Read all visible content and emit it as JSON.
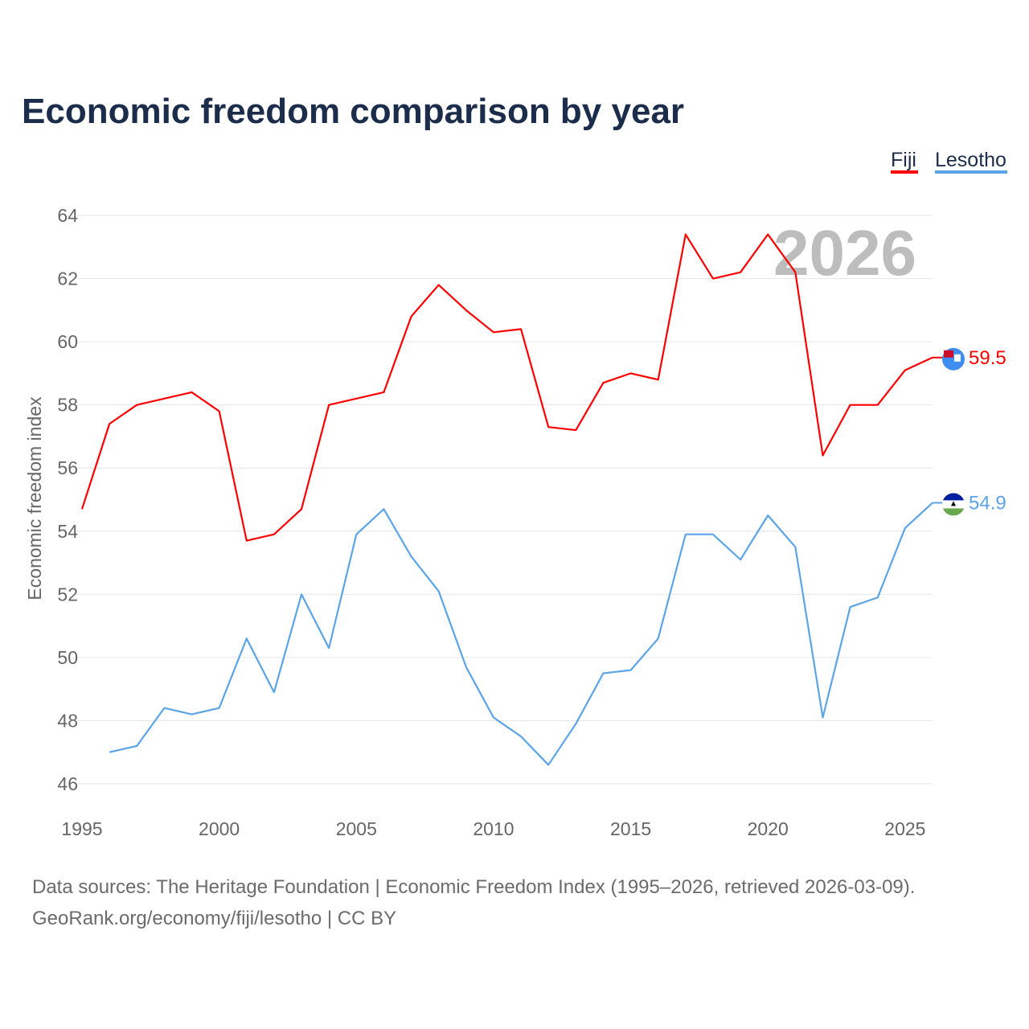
{
  "chart_data": {
    "type": "line",
    "title": "Economic freedom comparison by year",
    "xlabel": "",
    "ylabel": "Economic freedom index",
    "xlim": [
      1995,
      2026
    ],
    "ylim": [
      46,
      64
    ],
    "x_ticks": [
      1995,
      2000,
      2005,
      2010,
      2015,
      2020,
      2025
    ],
    "y_ticks": [
      46,
      48,
      50,
      52,
      54,
      56,
      58,
      60,
      62,
      64
    ],
    "grid": true,
    "legend_position": "top-right",
    "current_year_label": "2026",
    "series": [
      {
        "name": "Fiji",
        "color": "#ff0000",
        "end_label": "59.5",
        "x": [
          1995,
          1996,
          1997,
          1998,
          1999,
          2000,
          2001,
          2002,
          2003,
          2004,
          2005,
          2006,
          2007,
          2008,
          2009,
          2010,
          2011,
          2012,
          2013,
          2014,
          2015,
          2016,
          2017,
          2018,
          2019,
          2020,
          2021,
          2022,
          2023,
          2024,
          2025,
          2026
        ],
        "values": [
          54.7,
          57.4,
          58.0,
          58.2,
          58.4,
          57.8,
          53.7,
          53.9,
          54.7,
          58.0,
          58.2,
          58.4,
          60.8,
          61.8,
          61.0,
          60.3,
          60.4,
          57.3,
          57.2,
          58.7,
          59.0,
          58.8,
          63.4,
          62.0,
          62.2,
          63.4,
          62.2,
          56.4,
          58.0,
          58.0,
          59.1,
          59.5
        ]
      },
      {
        "name": "Lesotho",
        "color": "#5ba4e8",
        "end_label": "54.9",
        "x": [
          1996,
          1997,
          1998,
          1999,
          2000,
          2001,
          2002,
          2003,
          2004,
          2005,
          2006,
          2007,
          2008,
          2009,
          2010,
          2011,
          2012,
          2013,
          2014,
          2015,
          2016,
          2017,
          2018,
          2019,
          2020,
          2021,
          2022,
          2023,
          2024,
          2025,
          2026
        ],
        "values": [
          47.0,
          47.2,
          48.4,
          48.2,
          48.4,
          50.6,
          48.9,
          52.0,
          50.3,
          53.9,
          54.7,
          53.2,
          52.1,
          49.7,
          48.1,
          47.5,
          46.6,
          47.9,
          49.5,
          49.6,
          50.6,
          53.9,
          53.9,
          53.1,
          54.5,
          53.5,
          48.1,
          51.6,
          51.9,
          54.1,
          54.9
        ]
      }
    ]
  },
  "footer": {
    "line1": "Data sources: The Heritage Foundation | Economic Freedom Index (1995–2026, retrieved 2026-03-09).",
    "line2": "GeoRank.org/economy/fiji/lesotho | CC BY"
  }
}
